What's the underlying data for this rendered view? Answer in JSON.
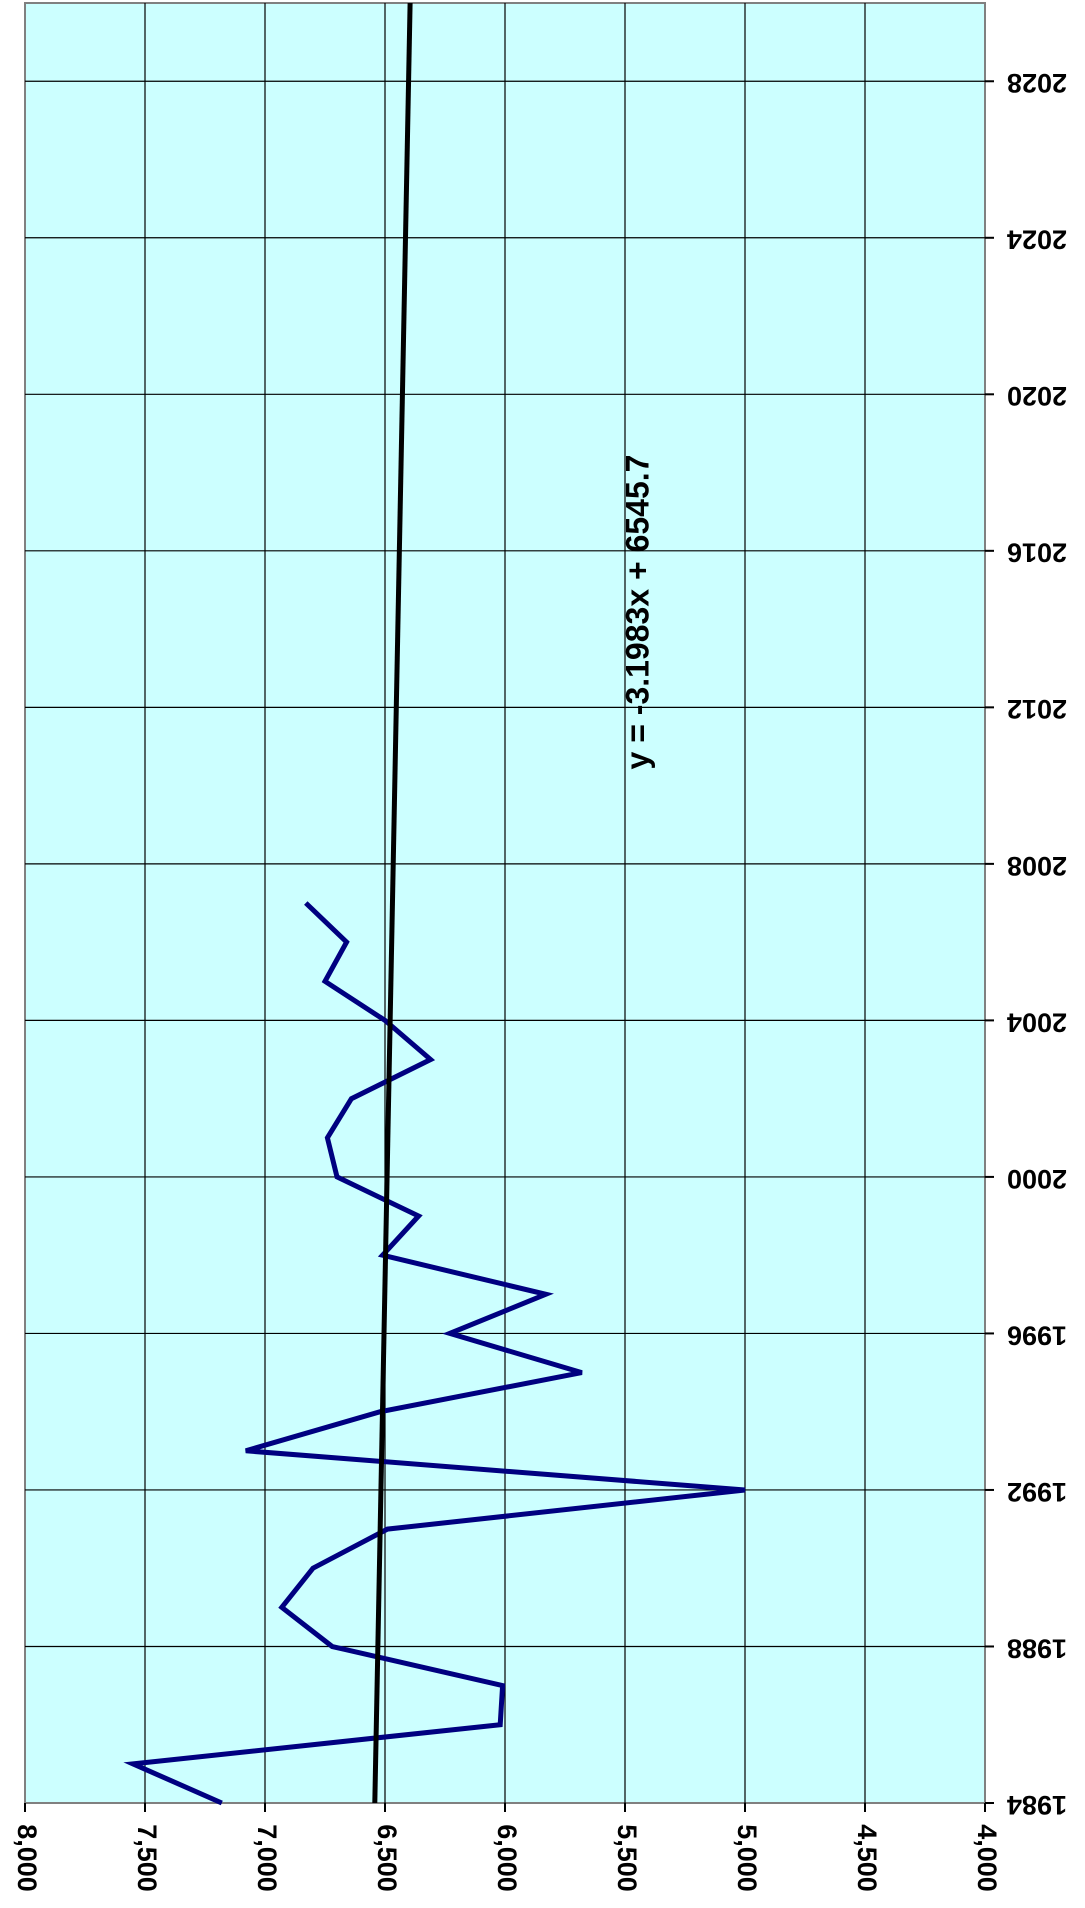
{
  "chart_data": {
    "type": "line",
    "orientation": "rotated-90-clockwise",
    "xlim": [
      1984,
      2030
    ],
    "ylim": [
      4000,
      8000
    ],
    "x_ticks": [
      1984,
      1988,
      1992,
      1996,
      2000,
      2004,
      2008,
      2012,
      2016,
      2020,
      2024,
      2028
    ],
    "y_ticks": [
      8000,
      7500,
      7000,
      6500,
      6000,
      5500,
      5000,
      4500,
      4000
    ],
    "x_tick_labels": [
      "1984",
      "1988",
      "1992",
      "1996",
      "2000",
      "2004",
      "2008",
      "2012",
      "2016",
      "2020",
      "2024",
      "2028"
    ],
    "y_tick_labels": [
      "8,000",
      "7,500",
      "7,000",
      "6,500",
      "6,000",
      "5,500",
      "5,000",
      "4,500",
      "4,000"
    ],
    "grid": true,
    "plot_background": "#ccffff",
    "series": [
      {
        "color": "#000080",
        "x": [
          1984,
          1985,
          1986,
          1987,
          1988,
          1989,
          1990,
          1991,
          1992,
          1993,
          1994,
          1995,
          1996,
          1997,
          1998,
          1999,
          2000,
          2001,
          2002,
          2003,
          2004,
          2005,
          2006,
          2007
        ],
        "values": [
          7180,
          7550,
          6020,
          6010,
          6720,
          6930,
          6800,
          6490,
          5000,
          7080,
          6520,
          5680,
          6230,
          5830,
          6510,
          6360,
          6700,
          6740,
          6640,
          6310,
          6500,
          6750,
          6660,
          6830
        ]
      }
    ],
    "trendline": {
      "color": "#000000",
      "equation": "y = -3.1983x + 6545.7",
      "x_start": 1984,
      "x_end": 2030,
      "y_start": 6542.5,
      "y_end": 6395.4
    }
  }
}
